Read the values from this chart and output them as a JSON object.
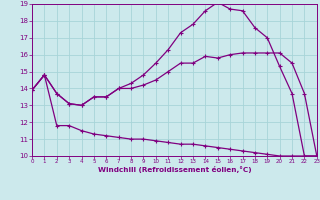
{
  "background_color": "#cce9ec",
  "grid_color": "#a8d4d8",
  "line_color": "#800080",
  "xlim": [
    0,
    23
  ],
  "ylim": [
    10,
    19
  ],
  "xticks": [
    0,
    1,
    2,
    3,
    4,
    5,
    6,
    7,
    8,
    9,
    10,
    11,
    12,
    13,
    14,
    15,
    16,
    17,
    18,
    19,
    20,
    21,
    22,
    23
  ],
  "yticks": [
    10,
    11,
    12,
    13,
    14,
    15,
    16,
    17,
    18,
    19
  ],
  "xlabel": "Windchill (Refroidissement éolien,°C)",
  "curve_upper_x": [
    0,
    1,
    2,
    3,
    4,
    5,
    6,
    7,
    8,
    9,
    10,
    11,
    12,
    13,
    14,
    15,
    16,
    17,
    18,
    19,
    20,
    21,
    22,
    23
  ],
  "curve_upper_y": [
    13.9,
    14.8,
    13.7,
    13.1,
    13.0,
    13.5,
    13.5,
    14.0,
    14.3,
    14.8,
    15.5,
    16.3,
    17.3,
    17.8,
    18.6,
    19.1,
    18.7,
    18.6,
    17.6,
    17.0,
    15.3,
    13.7,
    10.0,
    10.0
  ],
  "curve_mid_x": [
    0,
    1,
    2,
    3,
    4,
    5,
    6,
    7,
    8,
    9,
    10,
    11,
    12,
    13,
    14,
    15,
    16,
    17,
    18,
    19,
    20,
    21,
    22,
    23
  ],
  "curve_mid_y": [
    13.9,
    14.8,
    13.7,
    13.1,
    13.0,
    13.5,
    13.5,
    14.0,
    14.0,
    14.2,
    14.5,
    15.0,
    15.5,
    15.5,
    15.9,
    15.8,
    16.0,
    16.1,
    16.1,
    16.1,
    16.1,
    15.5,
    13.7,
    10.0
  ],
  "curve_lower_x": [
    0,
    1,
    2,
    3,
    4,
    5,
    6,
    7,
    8,
    9,
    10,
    11,
    12,
    13,
    14,
    15,
    16,
    17,
    18,
    19,
    20,
    21,
    22,
    23
  ],
  "curve_lower_y": [
    13.9,
    14.8,
    11.8,
    11.8,
    11.5,
    11.3,
    11.2,
    11.1,
    11.0,
    11.0,
    10.9,
    10.8,
    10.7,
    10.7,
    10.6,
    10.5,
    10.4,
    10.3,
    10.2,
    10.1,
    10.0,
    10.0,
    10.0,
    10.0
  ]
}
